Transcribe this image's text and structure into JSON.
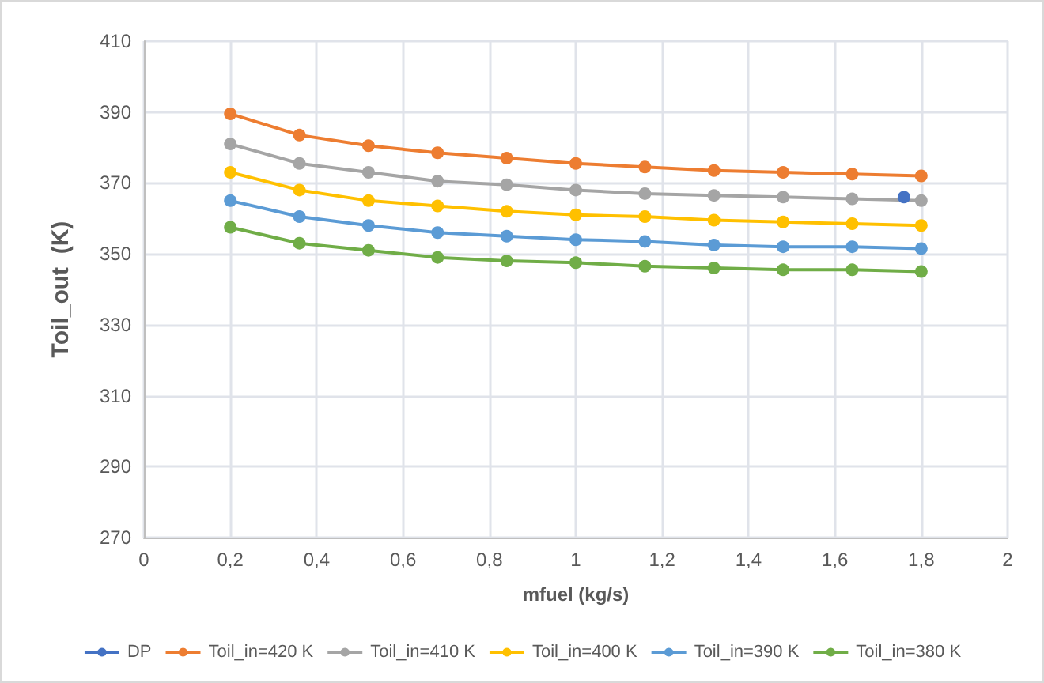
{
  "chart_data": {
    "type": "line",
    "xlabel": "mfuel (kg/s)",
    "ylabel": "Toil_out  (K)",
    "xlim": [
      0,
      2
    ],
    "xticks": [
      {
        "value": 0,
        "label": "0"
      },
      {
        "value": 0.2,
        "label": "0,2"
      },
      {
        "value": 0.4,
        "label": "0,4"
      },
      {
        "value": 0.6,
        "label": "0,6"
      },
      {
        "value": 0.8,
        "label": "0,8"
      },
      {
        "value": 1,
        "label": "1"
      },
      {
        "value": 1.2,
        "label": "1,2"
      },
      {
        "value": 1.4,
        "label": "1,4"
      },
      {
        "value": 1.6,
        "label": "1,6"
      },
      {
        "value": 1.8,
        "label": "1,8"
      },
      {
        "value": 2,
        "label": "2"
      }
    ],
    "ylim": [
      270,
      410
    ],
    "yticks": [
      270,
      290,
      310,
      330,
      350,
      370,
      390,
      410
    ],
    "grid": true,
    "legend": "bottom",
    "marker": "circle",
    "line_style": "solid",
    "x": [
      0.2,
      0.36,
      0.52,
      0.68,
      0.84,
      1.0,
      1.16,
      1.32,
      1.48,
      1.64,
      1.8
    ],
    "series": [
      {
        "name": "DP",
        "color": "#4472c4",
        "x": [
          1.76
        ],
        "values": [
          366
        ]
      },
      {
        "name": "Toil_in=420 K",
        "color": "#ed7d31",
        "values": [
          389.5,
          383.5,
          380.5,
          378.5,
          377,
          375.5,
          374.5,
          373.5,
          373,
          372.5,
          372
        ]
      },
      {
        "name": "Toil_in=410 K",
        "color": "#a5a5a5",
        "values": [
          381,
          375.5,
          373,
          370.5,
          369.5,
          368,
          367,
          366.5,
          366,
          365.5,
          365
        ]
      },
      {
        "name": "Toil_in=400 K",
        "color": "#ffc000",
        "values": [
          373,
          368,
          365,
          363.5,
          362,
          361,
          360.5,
          359.5,
          359,
          358.5,
          358
        ]
      },
      {
        "name": "Toil_in=390 K",
        "color": "#5b9bd5",
        "values": [
          365,
          360.5,
          358,
          356,
          355,
          354,
          353.5,
          352.5,
          352,
          352,
          351.5
        ]
      },
      {
        "name": "Toil_in=380 K",
        "color": "#70ad47",
        "values": [
          357.5,
          353,
          351,
          349,
          348,
          347.5,
          346.5,
          346,
          345.5,
          345.5,
          345
        ]
      }
    ]
  }
}
